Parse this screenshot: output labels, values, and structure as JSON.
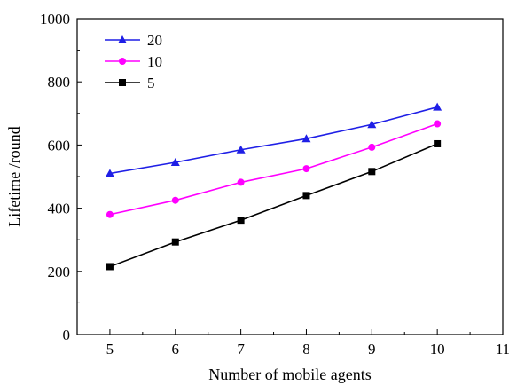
{
  "chart_data": {
    "type": "line",
    "title": "",
    "xlabel": "Number of mobile agents",
    "ylabel": "Lifetime /round",
    "xlim": [
      4.5,
      11
    ],
    "ylim": [
      0,
      1000
    ],
    "xticks": [
      5,
      6,
      7,
      8,
      9,
      10,
      11
    ],
    "yticks": [
      0,
      200,
      400,
      600,
      800,
      1000
    ],
    "grid": false,
    "legend_position": "top-left",
    "x": [
      5,
      6,
      7,
      8,
      9,
      10
    ],
    "series": [
      {
        "name": "20",
        "color": "#1f1fe6",
        "marker": "triangle",
        "values": [
          510,
          545,
          585,
          620,
          665,
          720
        ]
      },
      {
        "name": "10",
        "color": "#ff00ff",
        "marker": "circle",
        "values": [
          380,
          425,
          482,
          525,
          593,
          667
        ]
      },
      {
        "name": "5",
        "color": "#000000",
        "marker": "square",
        "values": [
          215,
          293,
          362,
          440,
          516,
          604
        ]
      }
    ]
  }
}
